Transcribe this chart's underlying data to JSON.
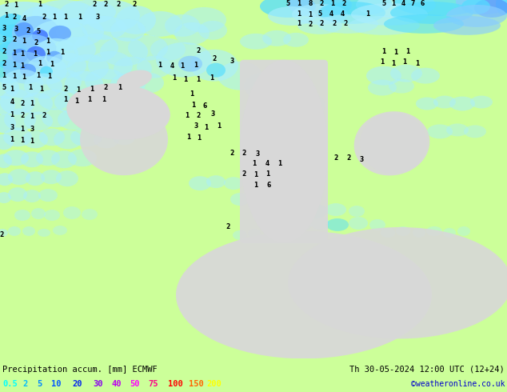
{
  "title_left": "Precipitation accum. [mm] ECMWF",
  "title_right": "Th 30-05-2024 12:00 UTC (12+24)",
  "credit": "©weatheronline.co.uk",
  "legend_values": [
    "0.5",
    "2",
    "5",
    "10",
    "20",
    "30",
    "40",
    "50",
    "75",
    "100",
    "150",
    "200"
  ],
  "legend_colors": [
    "#00ffff",
    "#00bbff",
    "#0088ff",
    "#0055ff",
    "#0022ee",
    "#8800ee",
    "#bb00ee",
    "#ff00ff",
    "#ff0088",
    "#ff0000",
    "#ff6600",
    "#ffff00"
  ],
  "bg_color": "#ccff99",
  "land_color": "#ccff99",
  "sea_land_gray": "#d8d8d8",
  "border_color": "#999999",
  "title_color": "#000000",
  "credit_color": "#0000cc",
  "figsize": [
    6.34,
    4.9
  ],
  "dpi": 100,
  "title_fontsize": 7.5,
  "legend_fontsize": 7.5,
  "credit_fontsize": 7.0,
  "precip_colors": {
    "light_cyan": "#aaeeff",
    "cyan": "#55ddff",
    "light_blue": "#88ccff",
    "blue": "#5599ff",
    "med_blue": "#3366ff",
    "dark_blue": "#0033cc"
  }
}
